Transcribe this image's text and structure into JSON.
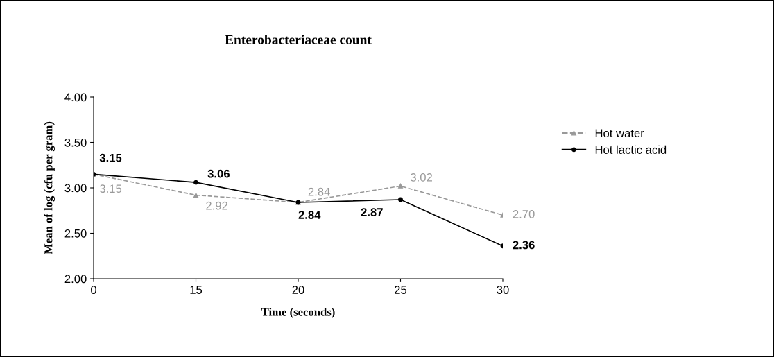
{
  "chart_data": {
    "type": "line",
    "title": "Enterobacteriaceae count",
    "xlabel": "Time (seconds)",
    "ylabel": "Mean of log (cfu per gram)",
    "categories": [
      "0",
      "15",
      "20",
      "25",
      "30"
    ],
    "series": [
      {
        "name": "Hot water",
        "color": "#999999",
        "values": [
          3.15,
          2.92,
          2.84,
          3.02,
          2.7
        ],
        "value_labels": [
          "3.15",
          "2.92",
          "2.84",
          "3.02",
          "2.70"
        ],
        "marker": "triangle",
        "line_style": "dashed"
      },
      {
        "name": "Hot lactic acid",
        "color": "#000000",
        "values": [
          3.15,
          3.06,
          2.84,
          2.87,
          2.36
        ],
        "value_labels": [
          "3.15",
          "3.06",
          "2.84",
          "2.87",
          "2.36"
        ],
        "marker": "circle",
        "line_style": "solid"
      }
    ],
    "ylim": [
      2,
      4
    ],
    "yticks": [
      {
        "value": 2,
        "label": "2.00"
      },
      {
        "value": 2.5,
        "label": "2.50"
      },
      {
        "value": 3,
        "label": "3.00"
      },
      {
        "value": 3.5,
        "label": "3.50"
      },
      {
        "value": 4,
        "label": "4.00"
      }
    ],
    "grid": false,
    "legend": "right"
  }
}
